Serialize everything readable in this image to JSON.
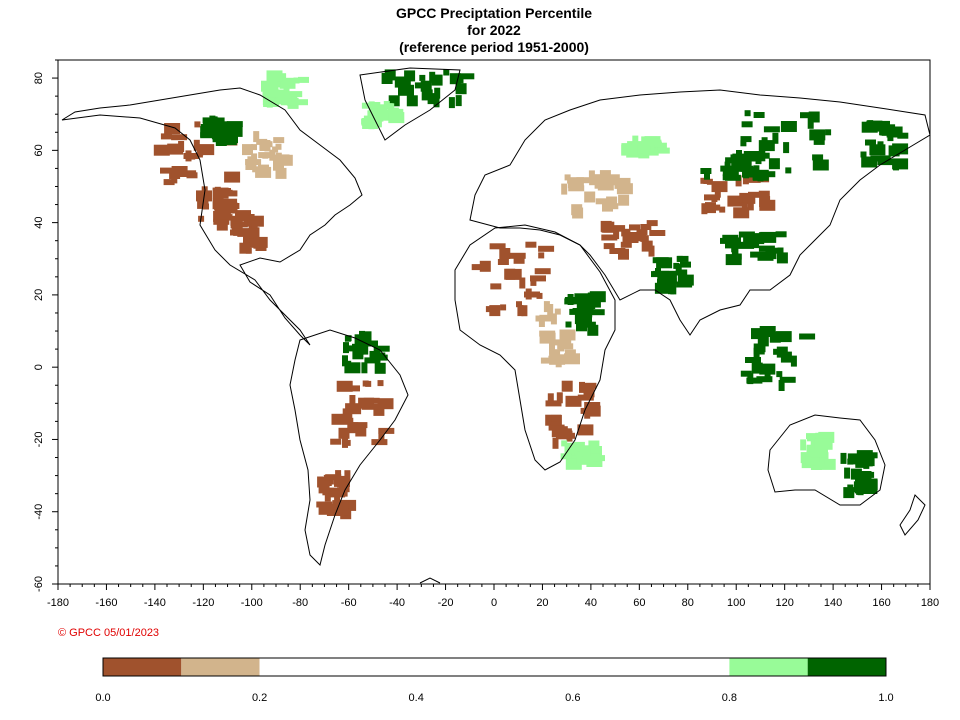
{
  "title": {
    "line1": "GPCC Preciptation Percentile",
    "line2": "for 2022",
    "line3": "(reference period 1951-2000)"
  },
  "copyright": {
    "text": "© GPCC 05/01/2023",
    "color": "#e00000"
  },
  "map": {
    "projection": "equirectangular",
    "lon_range": [
      -180,
      180
    ],
    "lat_range": [
      -60,
      85
    ],
    "x_ticks": [
      "-180",
      "-160",
      "-140",
      "-120",
      "-100",
      "-80",
      "-60",
      "-40",
      "-20",
      "0",
      "20",
      "40",
      "60",
      "80",
      "100",
      "120",
      "140",
      "160",
      "180"
    ],
    "y_ticks": [
      "80",
      "60",
      "40",
      "20",
      "0",
      "-20",
      "-40",
      "-60"
    ]
  },
  "legend": {
    "classes": [
      {
        "from": 0.0,
        "to": 0.1,
        "color": "#a0522d"
      },
      {
        "from": 0.1,
        "to": 0.2,
        "color": "#d2b48c"
      },
      {
        "from": 0.2,
        "to": 0.8,
        "color": "#ffffff"
      },
      {
        "from": 0.8,
        "to": 0.9,
        "color": "#98fb98"
      },
      {
        "from": 0.9,
        "to": 1.0,
        "color": "#006400"
      }
    ],
    "tick_labels": [
      "0.0",
      "0.2",
      "0.4",
      "0.6",
      "0.8",
      "1.0"
    ]
  }
}
